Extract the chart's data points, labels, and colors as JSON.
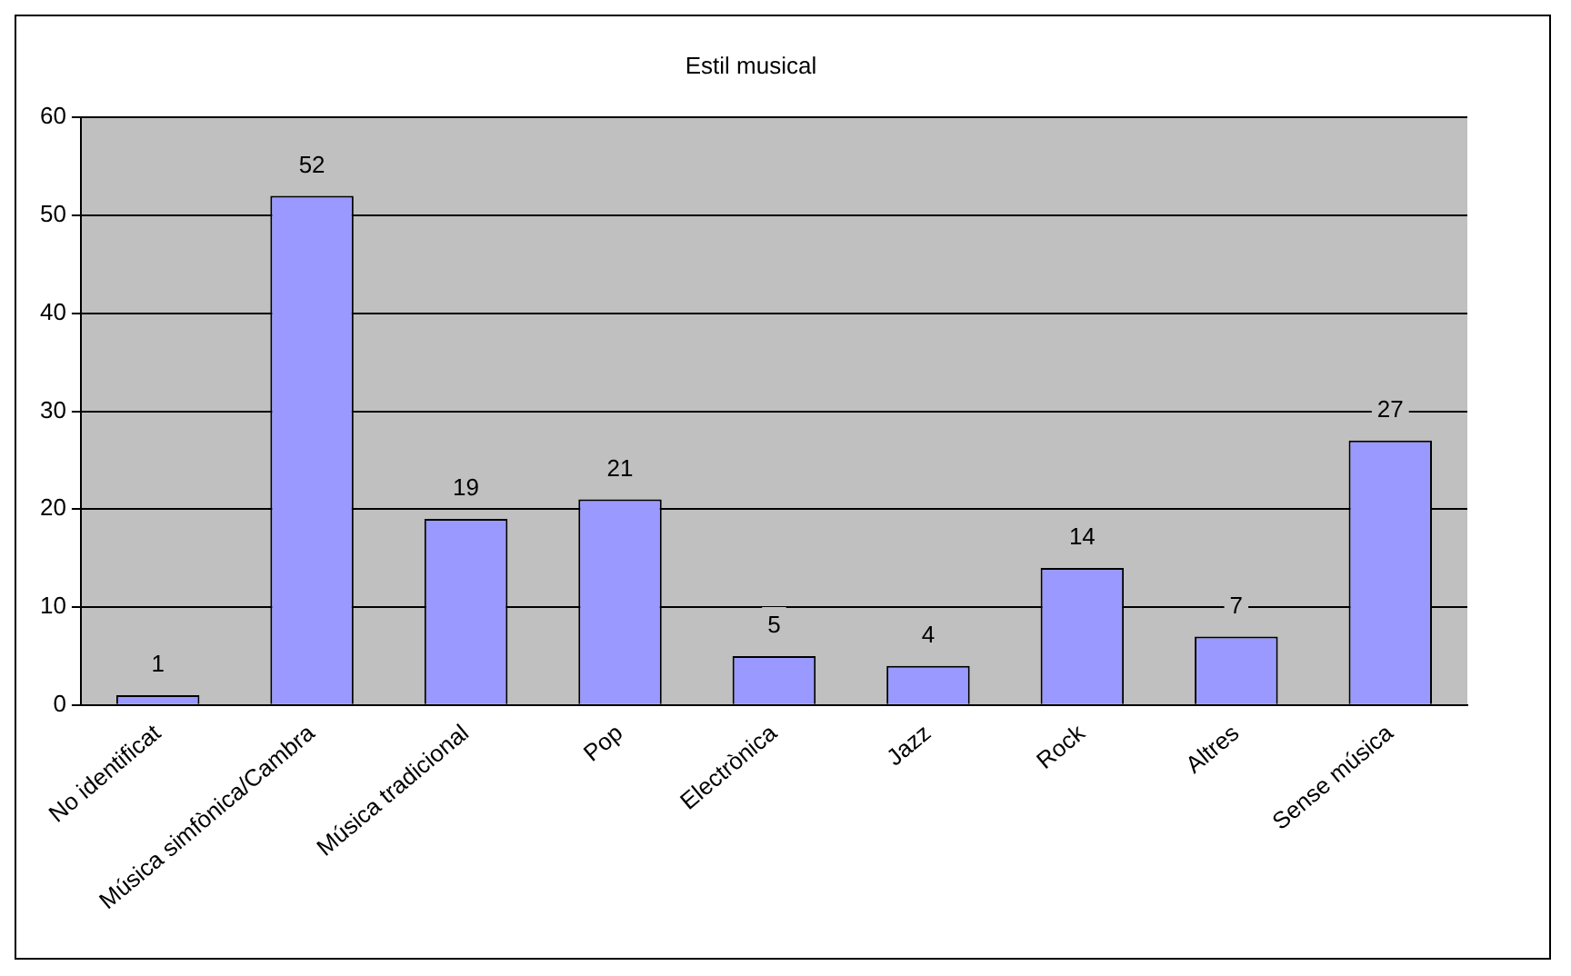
{
  "chart_data": {
    "type": "bar",
    "title": "Estil musical",
    "categories": [
      "No identificat",
      "Música simfònica/Cambra",
      "Música tradicional",
      "Pop",
      "Electrònica",
      "Jazz",
      "Rock",
      "Altres",
      "Sense música"
    ],
    "values": [
      1,
      52,
      19,
      21,
      5,
      4,
      14,
      7,
      27
    ],
    "color": "#9999ff",
    "ylim": [
      0,
      60
    ],
    "yticks": [
      0,
      10,
      20,
      30,
      40,
      50,
      60
    ],
    "grid": "y",
    "data_labels": true
  }
}
